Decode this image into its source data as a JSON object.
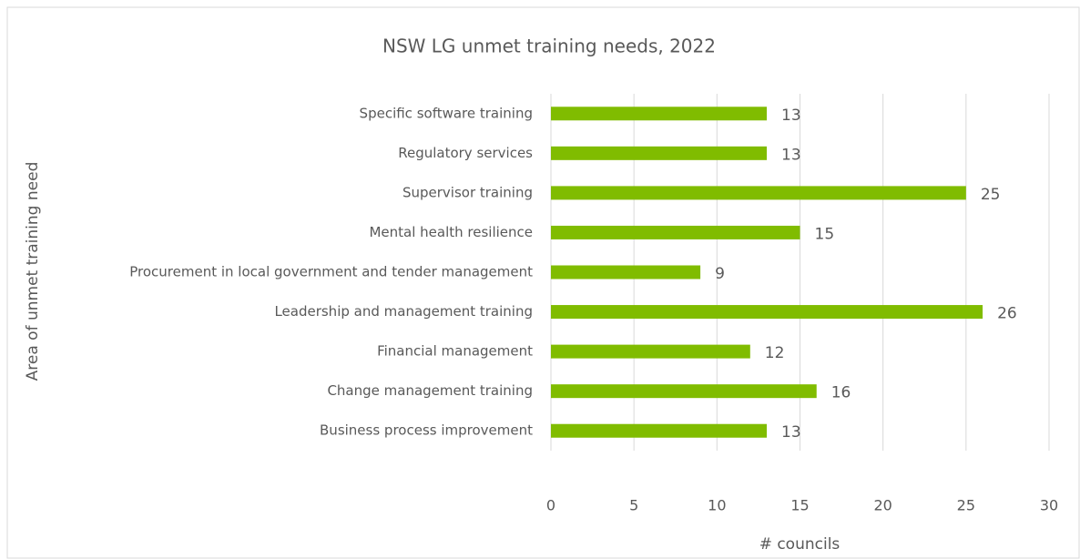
{
  "chart_data": {
    "type": "bar",
    "orientation": "horizontal",
    "title": "NSW LG unmet training needs, 2022",
    "x_label": "# councils",
    "y_label": "Area of unmet training need",
    "categories": [
      "Specific software training",
      "Regulatory services",
      "Supervisor training",
      "Mental health resilience",
      "Procurement in local government and tender management",
      "Leadership and management training",
      "Financial management",
      "Change management training",
      "Business process improvement"
    ],
    "values": [
      13,
      13,
      25,
      15,
      9,
      26,
      12,
      16,
      13
    ],
    "color": "#80bc00",
    "xlim": [
      0,
      30
    ],
    "xticks": [
      0,
      5,
      10,
      15,
      20,
      25,
      30
    ],
    "grid": true
  }
}
